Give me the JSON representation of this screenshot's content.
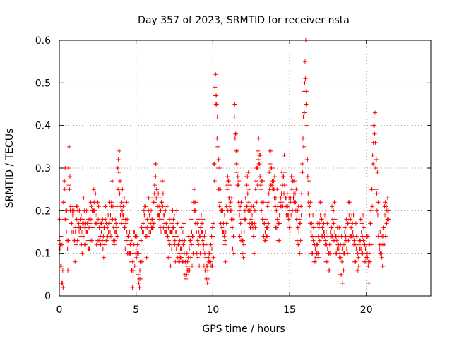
{
  "chart_data": {
    "type": "scatter",
    "title": "Day 357 of 2023, SRMTID for receiver nsta",
    "xlabel": "GPS time / hours",
    "ylabel": "SRMTID / TECUs",
    "xlim": [
      0,
      24.2
    ],
    "ylim": [
      0,
      0.6
    ],
    "xticks": [
      0,
      5,
      10,
      15,
      20
    ],
    "yticks": [
      0,
      0.1,
      0.2,
      0.3,
      0.4,
      0.5,
      0.6
    ],
    "xtick_labels": [
      "0",
      "5",
      "10",
      "15",
      "20"
    ],
    "ytick_labels": [
      "0",
      "0.1",
      "0.2",
      "0.3",
      "0.4",
      "0.5",
      "0.6"
    ],
    "grid": true,
    "marker": "+",
    "color": "#ff0000",
    "x_start": 0.0,
    "x_step": 0.0667,
    "series": [
      {
        "name": "SRMTID",
        "values": [
          0.13,
          0.12,
          0.07,
          0.03,
          0.22,
          0.27,
          0.18,
          0.15,
          0.11,
          0.3,
          0.25,
          0.21,
          0.17,
          0.19,
          0.15,
          0.13,
          0.16,
          0.18,
          0.2,
          0.17,
          0.16,
          0.14,
          0.15,
          0.18,
          0.17,
          0.16,
          0.17,
          0.15,
          0.13,
          0.16,
          0.17,
          0.18,
          0.2,
          0.22,
          0.2,
          0.19,
          0.17,
          0.17,
          0.18,
          0.16,
          0.14,
          0.15,
          0.13,
          0.14,
          0.16,
          0.18,
          0.17,
          0.16,
          0.15,
          0.17,
          0.19,
          0.22,
          0.18,
          0.16,
          0.15,
          0.15,
          0.16,
          0.3,
          0.29,
          0.24,
          0.21,
          0.22,
          0.19,
          0.18,
          0.16,
          0.17,
          0.15,
          0.14,
          0.12,
          0.1,
          0.08,
          0.06,
          0.1,
          0.12,
          0.14,
          0.11,
          0.1,
          0.05,
          0.04,
          0.08,
          0.13,
          0.15,
          0.17,
          0.19,
          0.16,
          0.14,
          0.18,
          0.2,
          0.19,
          0.17,
          0.16,
          0.18,
          0.22,
          0.26,
          0.28,
          0.25,
          0.21,
          0.19,
          0.18,
          0.2,
          0.22,
          0.21,
          0.19,
          0.17,
          0.15,
          0.16,
          0.14,
          0.13,
          0.12,
          0.15,
          0.17,
          0.16,
          0.14,
          0.13,
          0.15,
          0.14,
          0.12,
          0.1,
          0.09,
          0.11,
          0.13,
          0.12,
          0.1,
          0.08,
          0.07,
          0.06,
          0.09,
          0.11,
          0.13,
          0.12,
          0.14,
          0.22,
          0.2,
          0.17,
          0.15,
          0.13,
          0.12,
          0.14,
          0.16,
          0.15,
          0.13,
          0.12,
          0.1,
          0.09,
          0.07,
          0.06,
          0.08,
          0.1,
          0.12,
          0.11,
          0.14,
          0.31,
          0.49,
          0.45,
          0.37,
          0.3,
          0.25,
          0.22,
          0.2,
          0.17,
          0.15,
          0.14,
          0.13,
          0.21,
          0.25,
          0.27,
          0.23,
          0.2,
          0.18,
          0.16,
          0.14,
          0.42,
          0.38,
          0.31,
          0.26,
          0.22,
          0.19,
          0.17,
          0.15,
          0.13,
          0.12,
          0.18,
          0.23,
          0.26,
          0.24,
          0.22,
          0.2,
          0.18,
          0.17,
          0.16,
          0.15,
          0.2,
          0.27,
          0.3,
          0.34,
          0.31,
          0.28,
          0.25,
          0.22,
          0.19,
          0.17,
          0.15,
          0.14,
          0.16,
          0.22,
          0.29,
          0.31,
          0.3,
          0.27,
          0.25,
          0.23,
          0.21,
          0.2,
          0.18,
          0.17,
          0.19,
          0.21,
          0.24,
          0.26,
          0.28,
          0.26,
          0.23,
          0.21,
          0.19,
          0.18,
          0.2,
          0.23,
          0.25,
          0.27,
          0.24,
          0.22,
          0.2,
          0.18,
          0.16,
          0.15,
          0.17,
          0.21,
          0.29,
          0.37,
          0.48,
          0.55,
          0.45,
          0.32,
          0.24,
          0.19,
          0.17,
          0.15,
          0.14,
          0.13,
          0.12,
          0.11,
          0.1,
          0.12,
          0.14,
          0.17,
          0.19,
          0.18,
          0.16,
          0.15,
          0.14,
          0.13,
          0.12,
          0.11,
          0.1,
          0.12,
          0.14,
          0.16,
          0.18,
          0.17,
          0.15,
          0.14,
          0.13,
          0.12,
          0.11,
          0.1,
          0.09,
          0.08,
          0.1,
          0.12,
          0.14,
          0.13,
          0.15,
          0.17,
          0.19,
          0.18,
          0.16,
          0.15,
          0.14,
          0.13,
          0.12,
          0.11,
          0.1,
          0.09,
          0.11,
          0.13,
          0.15,
          0.14,
          0.13,
          0.12,
          0.11,
          0.1,
          0.09,
          0.08,
          0.12,
          0.17,
          0.25,
          0.33,
          0.4,
          0.38,
          0.3,
          0.24,
          0.19,
          0.15,
          0.12,
          0.1,
          0.09,
          0.12,
          0.16,
          0.19,
          0.21,
          0.2,
          0.18
        ]
      }
    ],
    "scatter_offsets": [
      -0.04,
      0.05,
      -0.02,
      0.03,
      -0.05,
      0.02,
      0.0
    ]
  }
}
